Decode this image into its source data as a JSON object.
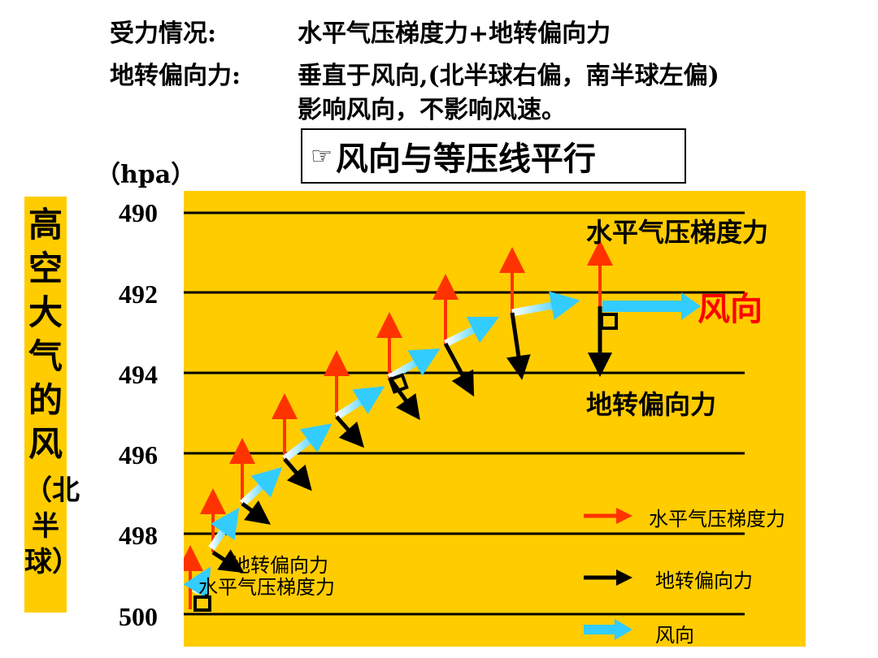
{
  "header": {
    "force_label": "受力情况:",
    "force_text": "水平气压梯度力+地转偏向力",
    "coriolis_label": "地转偏向力:",
    "coriolis_text_1": "垂直于风向,(北半球右偏，南半球左偏)",
    "coriolis_text_2": "影响风向，不影响风速。"
  },
  "note_box": {
    "icon": "pointing-hand-icon",
    "text": "风向与等压线平行"
  },
  "unit_label": "（hpa）",
  "side_title": {
    "main": "高空大气的风",
    "sub": "（北半球）"
  },
  "pressure_levels": [
    "490",
    "492",
    "494",
    "496",
    "498",
    "500"
  ],
  "diagram_labels": {
    "pgf_top": "水平气压梯度力",
    "wind_dir_big": "风向",
    "coriolis_mid": "地转偏向力",
    "coriolis_small": "地转偏向力",
    "pgf_small": "水平气压梯度力"
  },
  "legend": {
    "items": [
      {
        "label": "水平气压梯度力",
        "color": "#ff3300"
      },
      {
        "label": "地转偏向力",
        "color": "#000000"
      },
      {
        "label": "风向",
        "color": "#33ccff"
      }
    ]
  },
  "colors": {
    "panel_bg": "#ffcc00",
    "pgf_arrow": "#ff3300",
    "coriolis_arrow": "#000000",
    "wind_arrow": "#33ccff"
  }
}
